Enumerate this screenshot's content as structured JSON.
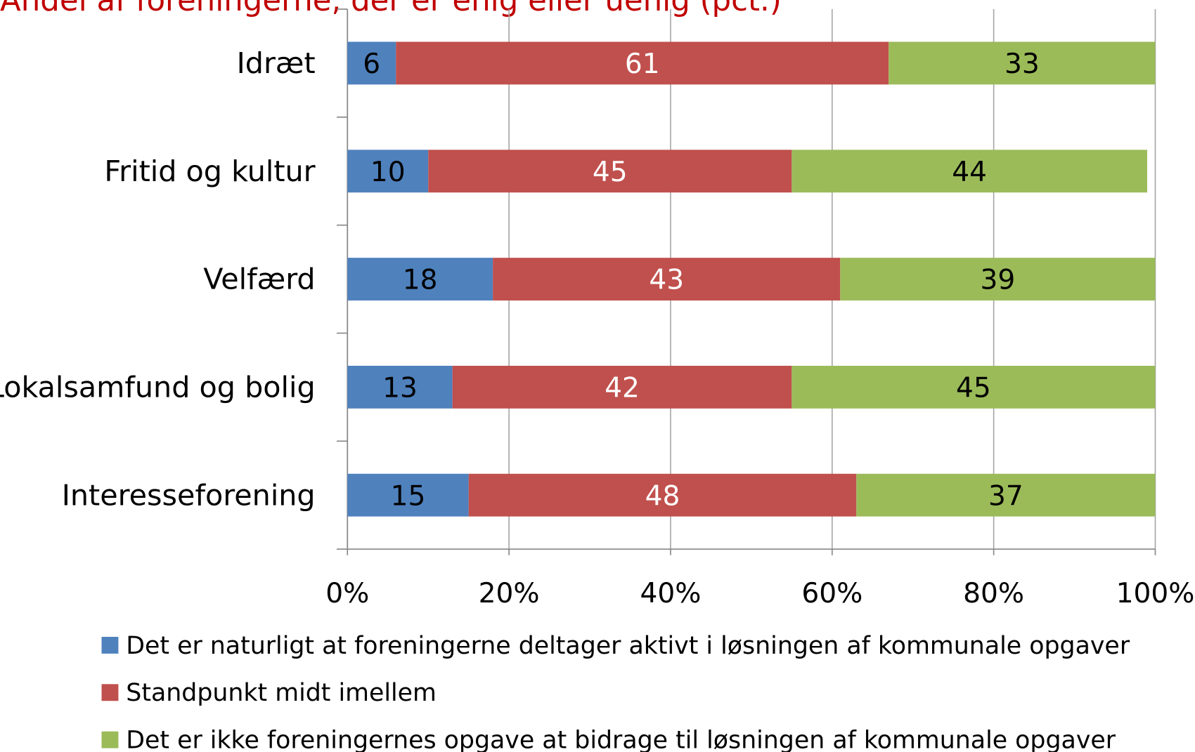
{
  "chart_data": {
    "type": "bar",
    "orientation": "horizontal",
    "stacked": true,
    "title": "Andel af foreningerne, der er enig eller uenig (pct.)",
    "categories": [
      "Idræt",
      "Fritid og kultur",
      "Velfærd",
      "Lokalsamfund og bolig",
      "Interesseforening"
    ],
    "series": [
      {
        "name": "Det er naturligt at foreningerne deltager aktivt i løsningen af kommunale opgaver",
        "color": "#4f81bd",
        "label_color": "#000000",
        "values": [
          6,
          10,
          18,
          13,
          15
        ]
      },
      {
        "name": "Standpunkt midt imellem",
        "color": "#c0504d",
        "label_color": "#ffffff",
        "values": [
          61,
          45,
          43,
          42,
          48
        ]
      },
      {
        "name": "Det er ikke foreningernes opgave at bidrage til løsningen af kommunale opgaver",
        "color": "#9bbb59",
        "label_color": "#000000",
        "values": [
          33,
          44,
          39,
          45,
          37
        ]
      }
    ],
    "xlim": [
      0,
      100
    ],
    "xticks": [
      {
        "value": 0,
        "label": "0%"
      },
      {
        "value": 20,
        "label": "20%"
      },
      {
        "value": 40,
        "label": "40%"
      },
      {
        "value": 60,
        "label": "60%"
      },
      {
        "value": 80,
        "label": "80%"
      },
      {
        "value": 100,
        "label": "100%"
      }
    ],
    "grid": true,
    "legend": "bottom"
  }
}
